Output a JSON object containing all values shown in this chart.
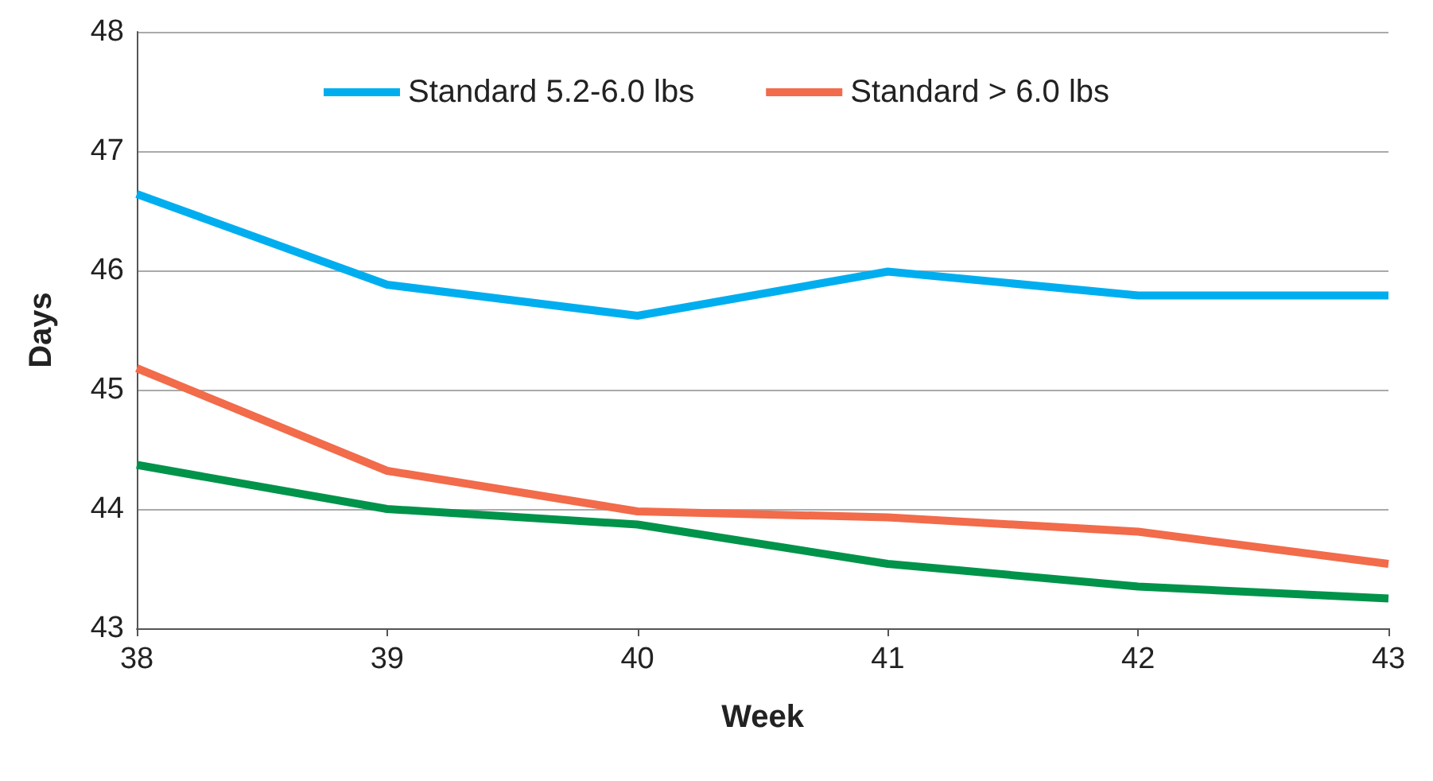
{
  "chart_data": {
    "type": "line",
    "xlabel": "Week",
    "ylabel": "Days",
    "x": [
      38,
      39,
      40,
      41,
      42,
      43
    ],
    "xlim": [
      38,
      43
    ],
    "xticks": [
      38,
      39,
      40,
      41,
      42,
      43
    ],
    "ylim": [
      43,
      48
    ],
    "yticks": [
      43,
      44,
      45,
      46,
      47,
      48
    ],
    "grid": "y",
    "legend": "top",
    "marker": "none",
    "line_style": "solid",
    "series": [
      {
        "color": "#00934a",
        "values": [
          44.37,
          44.0,
          43.87,
          43.54,
          43.35,
          43.25
        ]
      },
      {
        "name": "Standard 5.2-6.0 lbs",
        "color": "#00aeef",
        "values": [
          46.64,
          45.88,
          45.62,
          45.99,
          45.79,
          45.79
        ]
      },
      {
        "name": "Standard > 6.0 lbs",
        "color": "#f26b4a",
        "values": [
          45.18,
          44.32,
          43.98,
          43.93,
          43.81,
          43.54
        ]
      }
    ]
  }
}
